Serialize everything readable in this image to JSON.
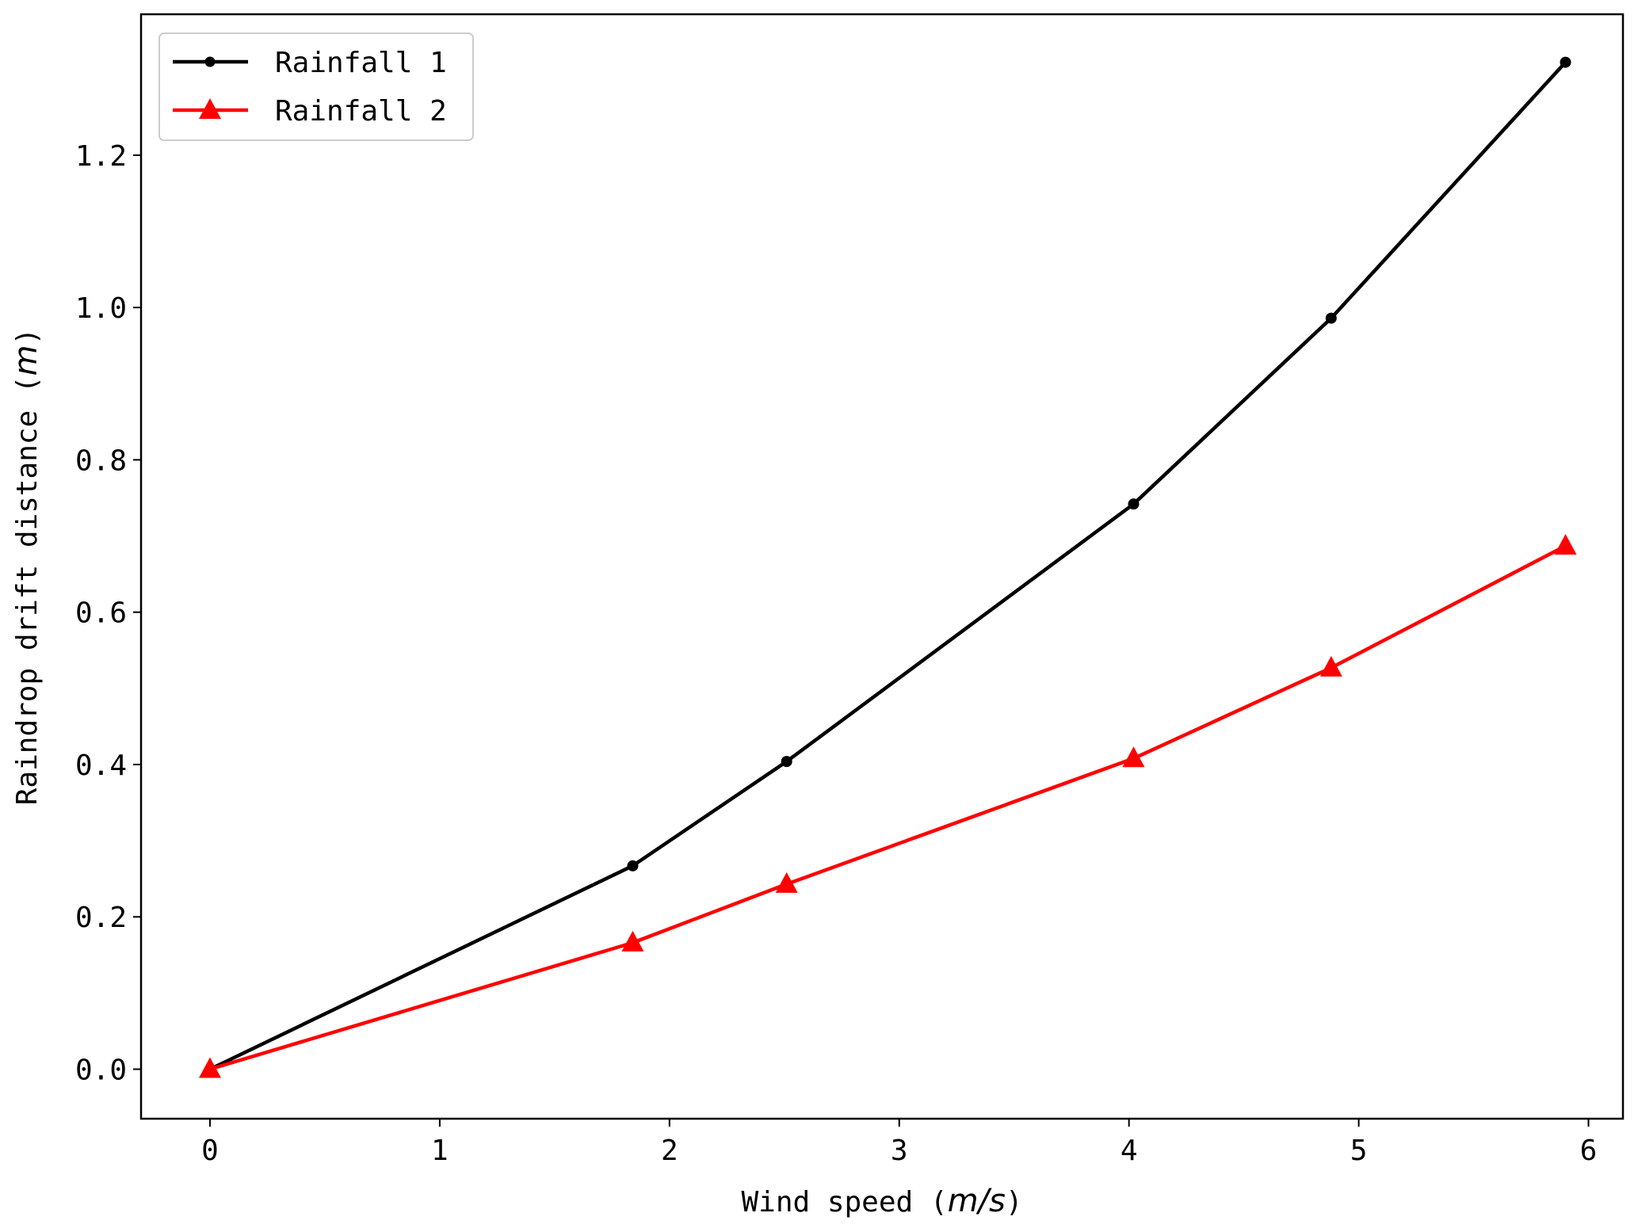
{
  "chart_data": {
    "type": "line",
    "title": "",
    "xlabel": "Wind speed (m/s)",
    "xlabel_parts": {
      "prefix": "Wind speed (",
      "unit": "m/s",
      "suffix": ")"
    },
    "ylabel": "Raindrop drift distance (m)",
    "ylabel_parts": {
      "prefix": "Raindrop drift distance (",
      "unit": "m",
      "suffix": ")"
    },
    "xlim": [
      -0.3,
      6.15
    ],
    "ylim": [
      -0.065,
      1.385
    ],
    "xticks": [
      0,
      1,
      2,
      3,
      4,
      5,
      6
    ],
    "xtick_labels": [
      "0",
      "1",
      "2",
      "3",
      "4",
      "5",
      "6"
    ],
    "yticks": [
      0.0,
      0.2,
      0.4,
      0.6,
      0.8,
      1.0,
      1.2
    ],
    "ytick_labels": [
      "0.0",
      "0.2",
      "0.4",
      "0.6",
      "0.8",
      "1.0",
      "1.2"
    ],
    "grid": false,
    "legend_position": "top-left",
    "series": [
      {
        "name": "Rainfall 1",
        "color": "#000000",
        "marker": "circle",
        "x": [
          0,
          1.84,
          2.51,
          4.02,
          4.88,
          5.9
        ],
        "y": [
          0.0,
          0.267,
          0.404,
          0.742,
          0.986,
          1.322
        ]
      },
      {
        "name": "Rainfall 2",
        "color": "#ff0000",
        "marker": "triangle",
        "x": [
          0,
          1.84,
          2.51,
          4.02,
          4.88,
          5.9
        ],
        "y": [
          0.0,
          0.166,
          0.243,
          0.408,
          0.527,
          0.687
        ]
      }
    ]
  }
}
